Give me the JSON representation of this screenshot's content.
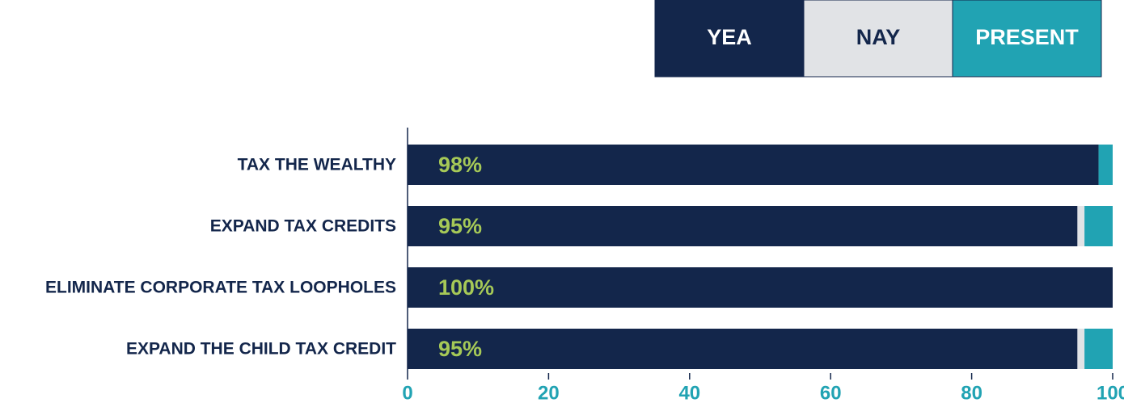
{
  "chart_data": {
    "type": "stacked-barh",
    "categories": [
      "TAX THE WEALTHY",
      "EXPAND TAX CREDITS",
      "ELIMINATE CORPORATE TAX LOOPHOLES",
      "EXPAND THE CHILD TAX CREDIT"
    ],
    "series": [
      {
        "name": "YEA",
        "color": "#13264b",
        "values": [
          98,
          95,
          100,
          95
        ],
        "value_labels": [
          "98%",
          "95%",
          "100%",
          "95%"
        ]
      },
      {
        "name": "NAY",
        "color": "#e1e3e6",
        "values": [
          0,
          1,
          0,
          1
        ]
      },
      {
        "name": "PRESENT",
        "color": "#21a3b3",
        "values": [
          2,
          4,
          0,
          4
        ]
      }
    ],
    "xlim": [
      0,
      100
    ],
    "xticks": [
      0,
      20,
      40,
      60,
      80,
      100
    ],
    "legend": "top-right"
  }
}
